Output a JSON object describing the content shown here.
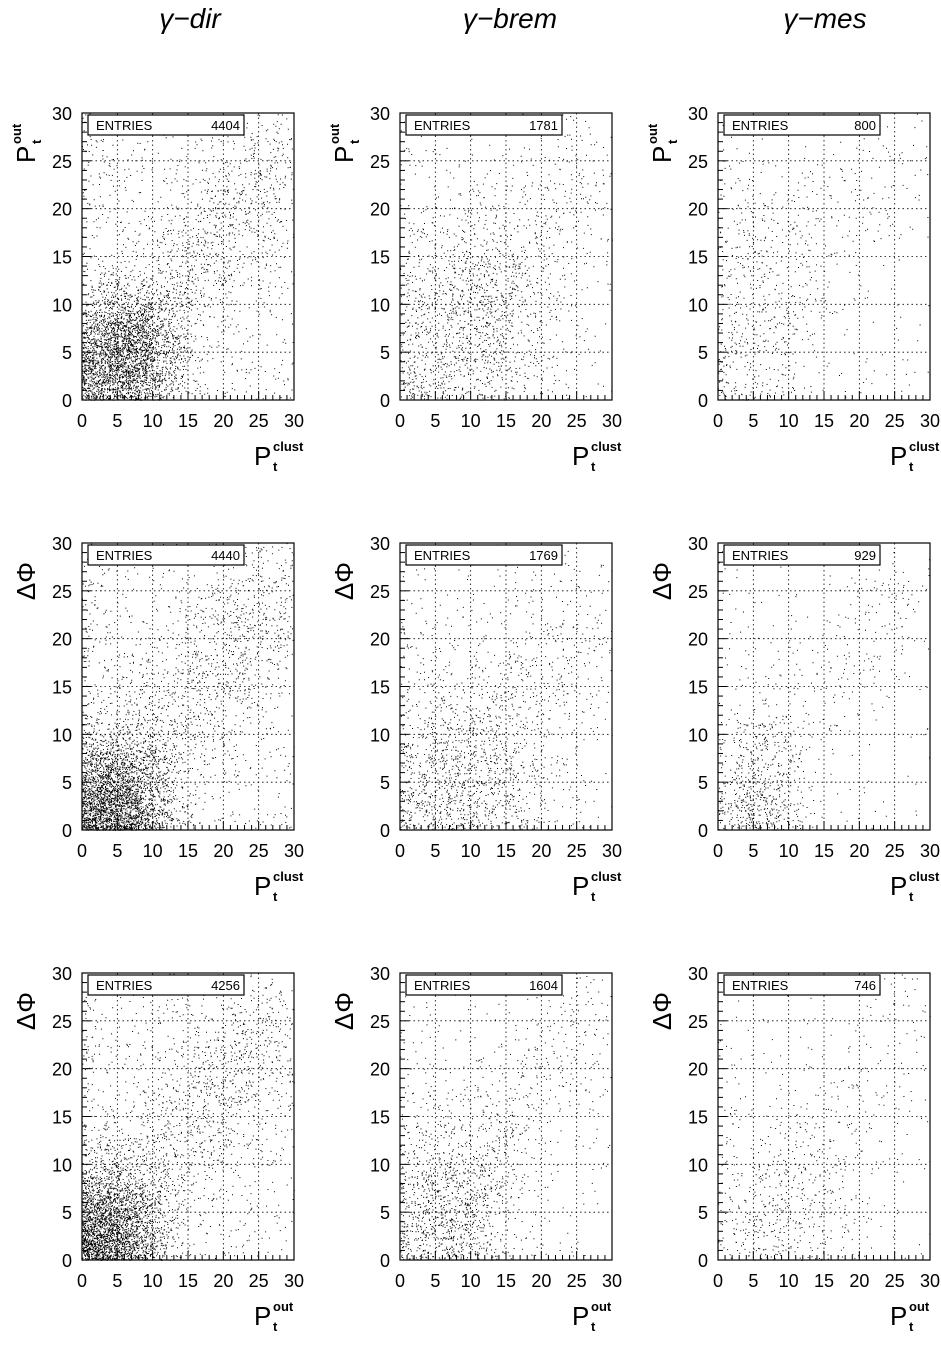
{
  "column_titles": [
    "γ−dir",
    "γ−brem",
    "γ−mes"
  ],
  "entries_label": "ENTRIES",
  "chart_data": [
    {
      "type": "scatter",
      "row": 0,
      "col": 0,
      "ylabel_main": "P",
      "ylabel_sup": "out",
      "ylabel_sub": "t",
      "ylabel_greek": "",
      "xlabel_main": "P",
      "xlabel_sup": "clust",
      "xlabel_sub": "t",
      "entries": "4404",
      "xlim": [
        0,
        30
      ],
      "ylim": [
        0,
        30
      ],
      "xticks": [
        "0",
        "5",
        "10",
        "15",
        "20",
        "25",
        "30"
      ],
      "yticks": [
        "0",
        "5",
        "10",
        "15",
        "20",
        "25",
        "30"
      ],
      "grid": true,
      "n_points": 4404,
      "center": [
        6,
        5
      ],
      "spread": [
        4,
        3.5
      ],
      "trend": [
        0.9,
        0.9
      ]
    },
    {
      "type": "scatter",
      "row": 0,
      "col": 1,
      "ylabel_main": "P",
      "ylabel_sup": "out",
      "ylabel_sub": "t",
      "ylabel_greek": "",
      "xlabel_main": "P",
      "xlabel_sup": "clust",
      "xlabel_sub": "t",
      "entries": "1781",
      "xlim": [
        0,
        30
      ],
      "ylim": [
        0,
        30
      ],
      "xticks": [
        "0",
        "5",
        "10",
        "15",
        "20",
        "25",
        "30"
      ],
      "yticks": [
        "0",
        "5",
        "10",
        "15",
        "20",
        "25",
        "30"
      ],
      "grid": true,
      "n_points": 1781,
      "center": [
        10,
        9
      ],
      "spread": [
        6,
        6
      ],
      "trend": [
        1,
        0.85
      ]
    },
    {
      "type": "scatter",
      "row": 0,
      "col": 2,
      "ylabel_main": "P",
      "ylabel_sup": "out",
      "ylabel_sub": "t",
      "ylabel_greek": "",
      "xlabel_main": "P",
      "xlabel_sup": "clust",
      "xlabel_sub": "t",
      "entries": "800",
      "xlim": [
        0,
        30
      ],
      "ylim": [
        0,
        30
      ],
      "xticks": [
        "0",
        "5",
        "10",
        "15",
        "20",
        "25",
        "30"
      ],
      "yticks": [
        "0",
        "5",
        "10",
        "15",
        "20",
        "25",
        "30"
      ],
      "grid": true,
      "n_points": 800,
      "center": [
        6,
        12
      ],
      "spread": [
        5,
        8
      ],
      "trend": [
        0.6,
        1
      ]
    },
    {
      "type": "scatter",
      "row": 1,
      "col": 0,
      "ylabel_main": "",
      "ylabel_sup": "",
      "ylabel_sub": "",
      "ylabel_greek": "ΔΦ",
      "xlabel_main": "P",
      "xlabel_sup": "clust",
      "xlabel_sub": "t",
      "entries": "4440",
      "xlim": [
        0,
        30
      ],
      "ylim": [
        0,
        30
      ],
      "xticks": [
        "0",
        "5",
        "10",
        "15",
        "20",
        "25",
        "30"
      ],
      "yticks": [
        "0",
        "5",
        "10",
        "15",
        "20",
        "25",
        "30"
      ],
      "grid": true,
      "n_points": 4440,
      "center": [
        5,
        3
      ],
      "spread": [
        4,
        4
      ],
      "trend": [
        0.9,
        0.9
      ]
    },
    {
      "type": "scatter",
      "row": 1,
      "col": 1,
      "ylabel_main": "",
      "ylabel_sup": "",
      "ylabel_sub": "",
      "ylabel_greek": "ΔΦ",
      "xlabel_main": "P",
      "xlabel_sup": "clust",
      "xlabel_sub": "t",
      "entries": "1769",
      "xlim": [
        0,
        30
      ],
      "ylim": [
        0,
        30
      ],
      "xticks": [
        "0",
        "5",
        "10",
        "15",
        "20",
        "25",
        "30"
      ],
      "yticks": [
        "0",
        "5",
        "10",
        "15",
        "20",
        "25",
        "30"
      ],
      "grid": true,
      "n_points": 1769,
      "center": [
        9,
        6
      ],
      "spread": [
        6,
        6
      ],
      "trend": [
        1,
        0.8
      ]
    },
    {
      "type": "scatter",
      "row": 1,
      "col": 2,
      "ylabel_main": "",
      "ylabel_sup": "",
      "ylabel_sub": "",
      "ylabel_greek": "ΔΦ",
      "xlabel_main": "P",
      "xlabel_sup": "clust",
      "xlabel_sub": "t",
      "entries": "929",
      "xlim": [
        0,
        30
      ],
      "ylim": [
        0,
        30
      ],
      "xticks": [
        "0",
        "5",
        "10",
        "15",
        "20",
        "25",
        "30"
      ],
      "yticks": [
        "0",
        "5",
        "10",
        "15",
        "20",
        "25",
        "30"
      ],
      "grid": true,
      "n_points": 929,
      "center": [
        6,
        4
      ],
      "spread": [
        3,
        5
      ],
      "trend": [
        0.7,
        1
      ]
    },
    {
      "type": "scatter",
      "row": 2,
      "col": 0,
      "ylabel_main": "",
      "ylabel_sup": "",
      "ylabel_sub": "",
      "ylabel_greek": "ΔΦ",
      "xlabel_main": "P",
      "xlabel_sup": "out",
      "xlabel_sub": "t",
      "entries": "4256",
      "xlim": [
        0,
        30
      ],
      "ylim": [
        0,
        30
      ],
      "xticks": [
        "0",
        "5",
        "10",
        "15",
        "20",
        "25",
        "30"
      ],
      "yticks": [
        "0",
        "5",
        "10",
        "15",
        "20",
        "25",
        "30"
      ],
      "grid": true,
      "n_points": 4256,
      "center": [
        4,
        3
      ],
      "spread": [
        4,
        4
      ],
      "trend": [
        0.9,
        0.9
      ]
    },
    {
      "type": "scatter",
      "row": 2,
      "col": 1,
      "ylabel_main": "",
      "ylabel_sup": "",
      "ylabel_sub": "",
      "ylabel_greek": "ΔΦ",
      "xlabel_main": "P",
      "xlabel_sup": "out",
      "xlabel_sub": "t",
      "entries": "1604",
      "xlim": [
        0,
        30
      ],
      "ylim": [
        0,
        30
      ],
      "xticks": [
        "0",
        "5",
        "10",
        "15",
        "20",
        "25",
        "30"
      ],
      "yticks": [
        "0",
        "5",
        "10",
        "15",
        "20",
        "25",
        "30"
      ],
      "grid": true,
      "n_points": 1604,
      "center": [
        8,
        6
      ],
      "spread": [
        5,
        6
      ],
      "trend": [
        1,
        0.9
      ]
    },
    {
      "type": "scatter",
      "row": 2,
      "col": 2,
      "ylabel_main": "",
      "ylabel_sup": "",
      "ylabel_sub": "",
      "ylabel_greek": "ΔΦ",
      "xlabel_main": "P",
      "xlabel_sup": "out",
      "xlabel_sub": "t",
      "entries": "746",
      "xlim": [
        0,
        30
      ],
      "ylim": [
        0,
        30
      ],
      "xticks": [
        "0",
        "5",
        "10",
        "15",
        "20",
        "25",
        "30"
      ],
      "yticks": [
        "0",
        "5",
        "10",
        "15",
        "20",
        "25",
        "30"
      ],
      "grid": true,
      "n_points": 746,
      "center": [
        10,
        6
      ],
      "spread": [
        6,
        6
      ],
      "trend": [
        0.7,
        0.9
      ]
    }
  ]
}
